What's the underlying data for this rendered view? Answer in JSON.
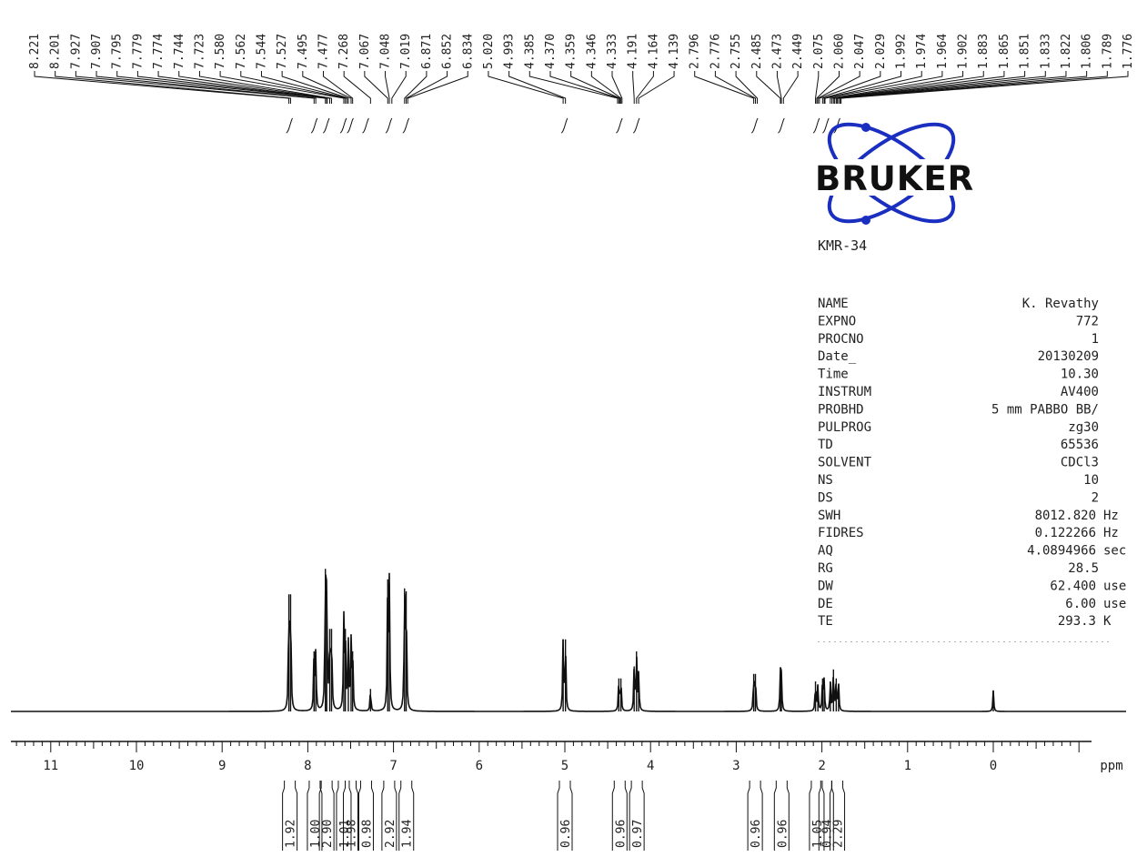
{
  "logo": {
    "text": "BRUKER",
    "color": "#1a2fc0"
  },
  "sample_id": "KMR-34",
  "parameters": [
    {
      "label": "NAME",
      "value": "K. Revathy"
    },
    {
      "label": "EXPNO",
      "value": "772"
    },
    {
      "label": "PROCNO",
      "value": "1"
    },
    {
      "label": "Date_",
      "value": "20130209"
    },
    {
      "label": "Time",
      "value": "10.30"
    },
    {
      "label": "INSTRUM",
      "value": "AV400"
    },
    {
      "label": "PROBHD",
      "value": "5 mm PABBO BB/"
    },
    {
      "label": "PULPROG",
      "value": "zg30"
    },
    {
      "label": "TD",
      "value": "65536"
    },
    {
      "label": "SOLVENT",
      "value": "CDCl3"
    },
    {
      "label": "NS",
      "value": "10"
    },
    {
      "label": "DS",
      "value": "2"
    },
    {
      "label": "SWH",
      "value": "8012.820 Hz"
    },
    {
      "label": "FIDRES",
      "value": "0.122266 Hz"
    },
    {
      "label": "AQ",
      "value": "4.0894966 sec"
    },
    {
      "label": "RG",
      "value": "28.5"
    },
    {
      "label": "DW",
      "value": "62.400 use"
    },
    {
      "label": "DE",
      "value": "6.00 use"
    },
    {
      "label": "TE",
      "value": "293.3 K"
    }
  ],
  "chart_data": {
    "type": "line",
    "xlabel": "ppm",
    "xlim": [
      11.5,
      -1.6
    ],
    "x_reversed": true,
    "x_ticks": [
      "11",
      "10",
      "9",
      "8",
      "7",
      "6",
      "5",
      "4",
      "3",
      "2",
      "1",
      "0"
    ],
    "x_tick_values": [
      11,
      10,
      9,
      8,
      7,
      6,
      5,
      4,
      3,
      2,
      1,
      0
    ],
    "peak_labels": [
      "8.221",
      "8.201",
      "7.927",
      "7.907",
      "7.795",
      "7.779",
      "7.774",
      "7.744",
      "7.723",
      "7.580",
      "7.562",
      "7.544",
      "7.527",
      "7.495",
      "7.477",
      "7.268",
      "7.067",
      "7.048",
      "7.019",
      "6.871",
      "6.852",
      "6.834",
      "5.020",
      "4.993",
      "4.385",
      "4.370",
      "4.359",
      "4.346",
      "4.333",
      "4.191",
      "4.164",
      "4.139",
      "2.796",
      "2.776",
      "2.755",
      "2.485",
      "2.473",
      "2.449",
      "2.075",
      "2.060",
      "2.047",
      "2.029",
      "1.992",
      "1.974",
      "1.964",
      "1.902",
      "1.883",
      "1.865",
      "1.851",
      "1.833",
      "1.822",
      "1.806",
      "1.789",
      "1.776"
    ],
    "peak_positions": [
      8.221,
      8.201,
      7.927,
      7.907,
      7.795,
      7.779,
      7.774,
      7.744,
      7.723,
      7.58,
      7.562,
      7.544,
      7.527,
      7.495,
      7.477,
      7.268,
      7.067,
      7.048,
      7.019,
      6.871,
      6.852,
      6.834,
      5.02,
      4.993,
      4.385,
      4.37,
      4.359,
      4.346,
      4.333,
      4.191,
      4.164,
      4.139,
      2.796,
      2.776,
      2.755,
      2.485,
      2.473,
      2.449,
      2.075,
      2.06,
      2.047,
      2.029,
      1.992,
      1.974,
      1.964,
      1.902,
      1.883,
      1.865,
      1.851,
      1.833,
      1.822,
      1.806,
      1.789,
      1.776
    ],
    "peaks": [
      {
        "ppm": 8.221,
        "height": 0.78
      },
      {
        "ppm": 8.201,
        "height": 0.78
      },
      {
        "ppm": 7.927,
        "height": 0.4
      },
      {
        "ppm": 7.907,
        "height": 0.4
      },
      {
        "ppm": 7.795,
        "height": 0.95
      },
      {
        "ppm": 7.779,
        "height": 0.8
      },
      {
        "ppm": 7.744,
        "height": 0.55
      },
      {
        "ppm": 7.723,
        "height": 0.55
      },
      {
        "ppm": 7.58,
        "height": 0.6
      },
      {
        "ppm": 7.562,
        "height": 0.55
      },
      {
        "ppm": 7.527,
        "height": 0.45
      },
      {
        "ppm": 7.495,
        "height": 0.45
      },
      {
        "ppm": 7.477,
        "height": 0.4
      },
      {
        "ppm": 7.268,
        "height": 0.15
      },
      {
        "ppm": 7.067,
        "height": 0.88
      },
      {
        "ppm": 7.048,
        "height": 0.85
      },
      {
        "ppm": 6.871,
        "height": 0.82
      },
      {
        "ppm": 6.852,
        "height": 0.8
      },
      {
        "ppm": 5.02,
        "height": 0.48
      },
      {
        "ppm": 4.993,
        "height": 0.48
      },
      {
        "ppm": 4.37,
        "height": 0.22
      },
      {
        "ppm": 4.346,
        "height": 0.22
      },
      {
        "ppm": 4.191,
        "height": 0.3
      },
      {
        "ppm": 4.164,
        "height": 0.4
      },
      {
        "ppm": 4.139,
        "height": 0.25
      },
      {
        "ppm": 2.796,
        "height": 0.25
      },
      {
        "ppm": 2.776,
        "height": 0.25
      },
      {
        "ppm": 2.485,
        "height": 0.25
      },
      {
        "ppm": 2.473,
        "height": 0.22
      },
      {
        "ppm": 2.075,
        "height": 0.2
      },
      {
        "ppm": 2.047,
        "height": 0.18
      },
      {
        "ppm": 1.992,
        "height": 0.22
      },
      {
        "ppm": 1.974,
        "height": 0.2
      },
      {
        "ppm": 1.902,
        "height": 0.2
      },
      {
        "ppm": 1.865,
        "height": 0.28
      },
      {
        "ppm": 1.833,
        "height": 0.22
      },
      {
        "ppm": 1.806,
        "height": 0.18
      },
      {
        "ppm": 0.0,
        "height": 0.14
      }
    ],
    "integrals": [
      {
        "center": 8.21,
        "value": "1.92"
      },
      {
        "center": 7.92,
        "value": "1.00"
      },
      {
        "center": 7.78,
        "value": "2.90"
      },
      {
        "center": 7.58,
        "value": "1.01"
      },
      {
        "center": 7.5,
        "value": "1.98"
      },
      {
        "center": 7.32,
        "value": "0.98"
      },
      {
        "center": 7.05,
        "value": "2.92"
      },
      {
        "center": 6.85,
        "value": "1.94"
      },
      {
        "center": 5.0,
        "value": "0.96"
      },
      {
        "center": 4.36,
        "value": "0.96"
      },
      {
        "center": 4.16,
        "value": "0.97"
      },
      {
        "center": 2.78,
        "value": "0.96"
      },
      {
        "center": 2.47,
        "value": "0.96"
      },
      {
        "center": 2.06,
        "value": "1.05"
      },
      {
        "center": 1.95,
        "value": "0.94"
      },
      {
        "center": 1.82,
        "value": "2.29"
      }
    ]
  }
}
